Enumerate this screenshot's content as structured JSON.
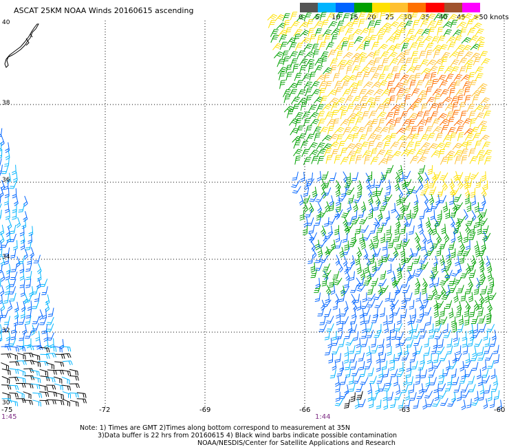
{
  "title": "ASCAT 25KM NOAA Winds 20160615 ascending",
  "legend": {
    "colors": [
      "#555555",
      "#00b4ff",
      "#0064ff",
      "#00a000",
      "#ffe000",
      "#ffc030",
      "#ff7000",
      "#ff0000",
      "#a0522d",
      "#ff00ff",
      "#8000c0"
    ],
    "labels": [
      "0",
      "5",
      "10",
      "15",
      "20",
      "25",
      "30",
      "35",
      "40",
      "45",
      ">50 knots"
    ]
  },
  "lat_labels": [
    "40",
    "38",
    "36",
    "34",
    "32",
    "30"
  ],
  "lon_labels": [
    "-75",
    "-72",
    "-69",
    "-66",
    "-63",
    "-60"
  ],
  "pass_times": [
    "1:45",
    "1:44"
  ],
  "notes": [
    "Note: 1) Times are GMT 2)Times along bottom correspond to measurement at 35N",
    "3)Data buffer is 22 hrs from 20160615 4) Black wind barbs indicate possible contamination",
    "NOAA/NESDIS/Center for Satellite Applications and Research"
  ],
  "map_extent": {
    "lon": [
      -75,
      -60
    ],
    "lat": [
      30,
      40
    ]
  }
}
